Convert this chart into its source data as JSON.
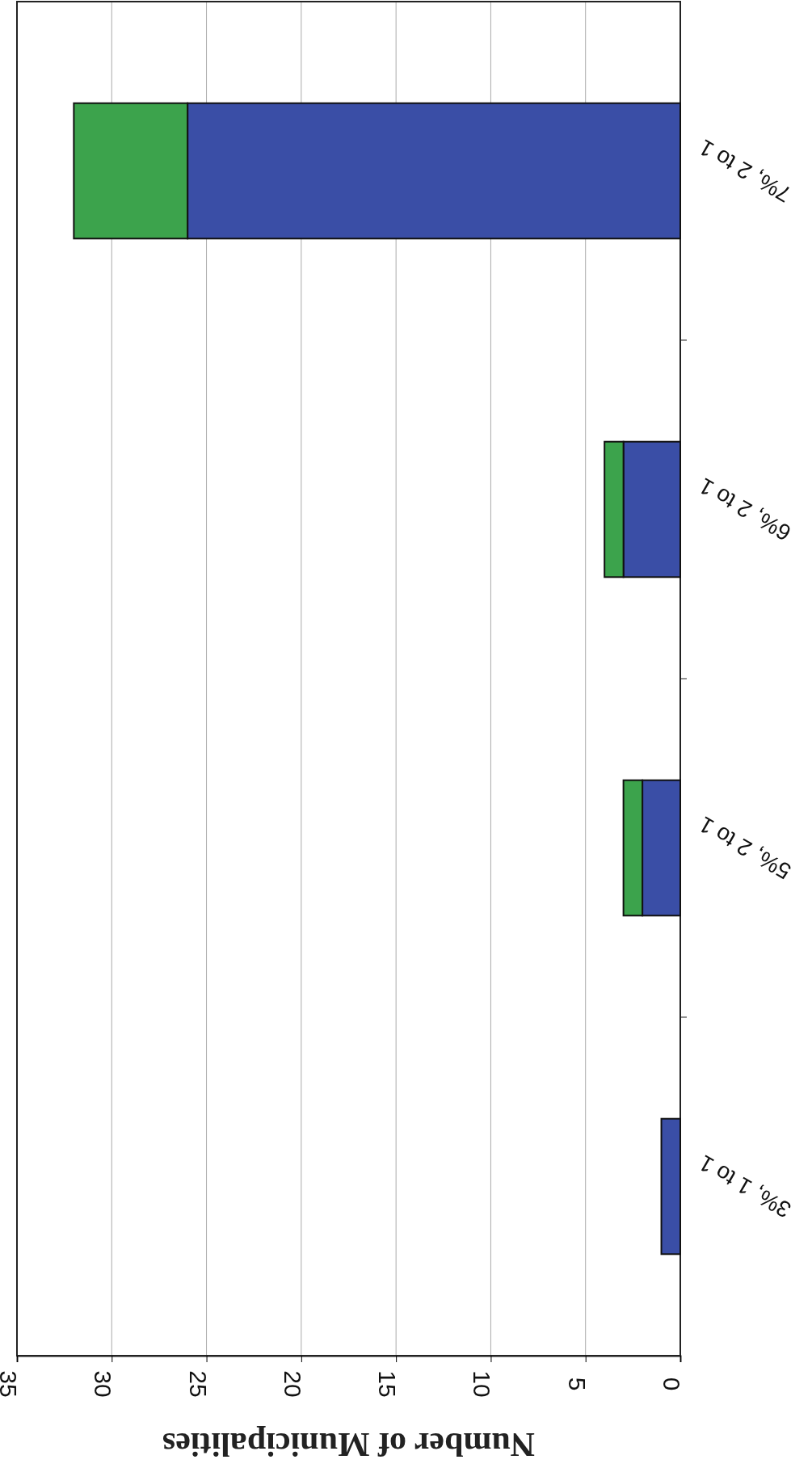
{
  "chart_data": {
    "type": "bar",
    "orientation": "horizontal",
    "stacked": true,
    "xlabel": "Number of Municipalities",
    "categories": [
      "7%, 2 to 1",
      "6%, 2 to 1",
      "5%, 2 to 1",
      "3%, 1 to 1"
    ],
    "series": [
      {
        "color": "#3a4ea6",
        "values": [
          26,
          3,
          2,
          1
        ]
      },
      {
        "color": "#3ca34c",
        "values": [
          6,
          1,
          1,
          0
        ]
      }
    ],
    "xlim": [
      35,
      0
    ],
    "xticks": [
      35,
      30,
      25,
      20,
      15,
      10,
      5,
      0
    ],
    "grid": "x"
  }
}
